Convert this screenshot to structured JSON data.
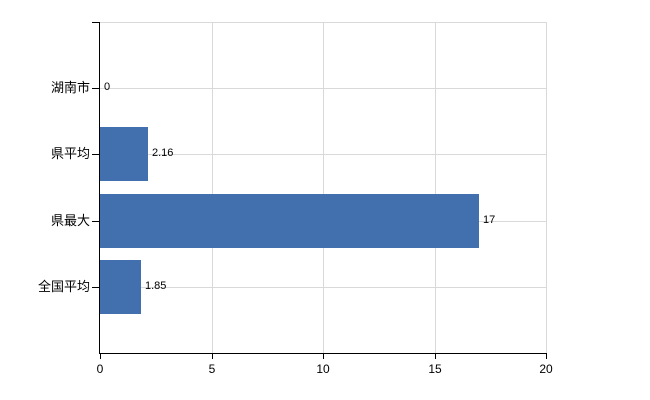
{
  "chart_data": {
    "type": "bar",
    "orientation": "horizontal",
    "title": "",
    "xlabel": "",
    "ylabel": "",
    "categories": [
      "湖南市",
      "県平均",
      "県最大",
      "全国平均"
    ],
    "values": [
      0,
      2.16,
      17,
      1.85
    ],
    "value_labels": [
      "0",
      "2.16",
      "17",
      "1.85"
    ],
    "xlim": [
      0,
      20
    ],
    "x_ticks": [
      0,
      5,
      10,
      15,
      20
    ],
    "x_tick_labels": [
      "0",
      "5",
      "10",
      "15",
      "20"
    ],
    "grid": true,
    "legend": false,
    "bar_color": "#4270ae",
    "grid_color": "#d9d9d9",
    "axis_color": "#000000",
    "text_color": "#000000",
    "background_color": "#ffffff"
  }
}
